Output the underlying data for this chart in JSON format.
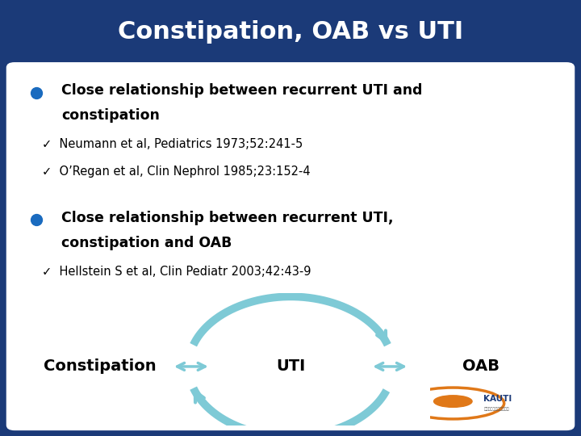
{
  "title": "Constipation, OAB vs UTI",
  "title_color": "#ffffff",
  "title_bg": "#1b3a78",
  "slide_bg": "#1b3a78",
  "bullet_color": "#1a6bbf",
  "bullet1_line1": "Close relationship between recurrent UTI and",
  "bullet1_line2": "constipation",
  "ref1": "✓  Neumann et al, Pediatrics 1973;52:241-5",
  "ref2": "✓  O’Regan et al, Clin Nephrol 1985;23:152-4",
  "bullet2_line1": "Close relationship between recurrent UTI,",
  "bullet2_line2": "constipation and OAB",
  "ref3": "✓  Hellstein S et al, Clin Pediatr 2003;42:43-9",
  "arrow_color": "#7ecad6",
  "label_constipation": "Constipation",
  "label_uti": "UTI",
  "label_oab": "OAB"
}
